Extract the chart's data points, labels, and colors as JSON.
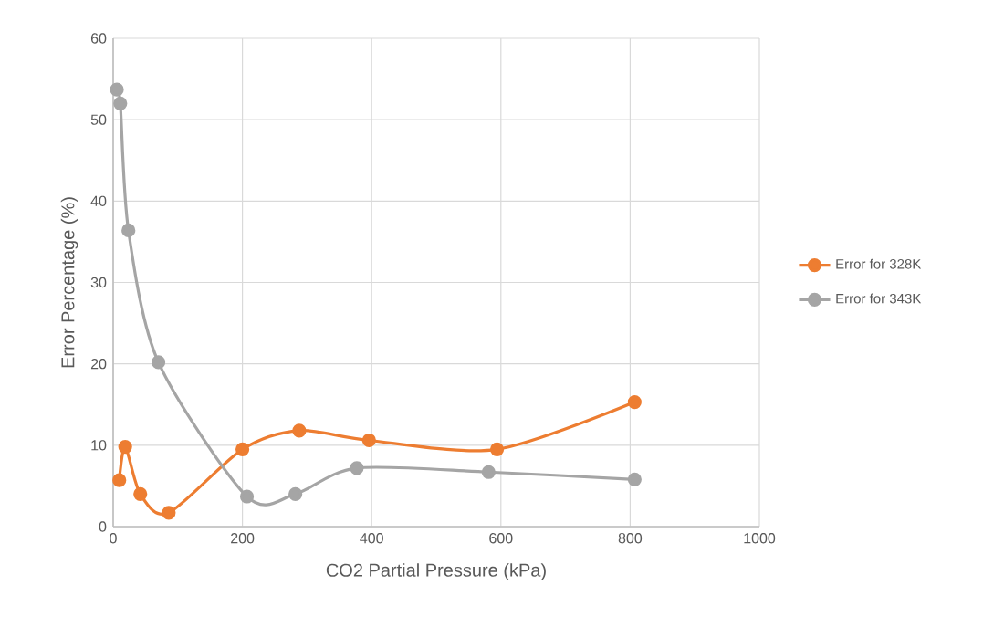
{
  "chart_data": {
    "type": "line",
    "xlabel": "CO2 Partial Pressure (kPa)",
    "ylabel": "Error Percentage (%)",
    "xlim": [
      0,
      1000
    ],
    "xticks": [
      0,
      200,
      400,
      600,
      800,
      1000
    ],
    "ylim": [
      0,
      60
    ],
    "yticks": [
      0,
      10,
      20,
      30,
      40,
      50,
      60
    ],
    "grid": true,
    "legend": "right",
    "marker": "circle",
    "line_style": "solid",
    "series": [
      {
        "name": "Error for 328K",
        "color": "#ed7d31",
        "x": [
          9.5,
          18.6,
          42,
          86,
          200,
          288,
          396,
          594,
          807
        ],
        "values": [
          5.7,
          9.8,
          4.0,
          1.7,
          9.5,
          11.8,
          10.6,
          9.5,
          15.3
        ]
      },
      {
        "name": "Error for 343K",
        "color": "#a5a5a5",
        "x": [
          5.7,
          11,
          23.6,
          70,
          207,
          282,
          377,
          581,
          807
        ],
        "values": [
          53.7,
          52.0,
          36.4,
          20.2,
          3.7,
          4.0,
          7.2,
          6.7,
          5.8
        ]
      }
    ]
  }
}
